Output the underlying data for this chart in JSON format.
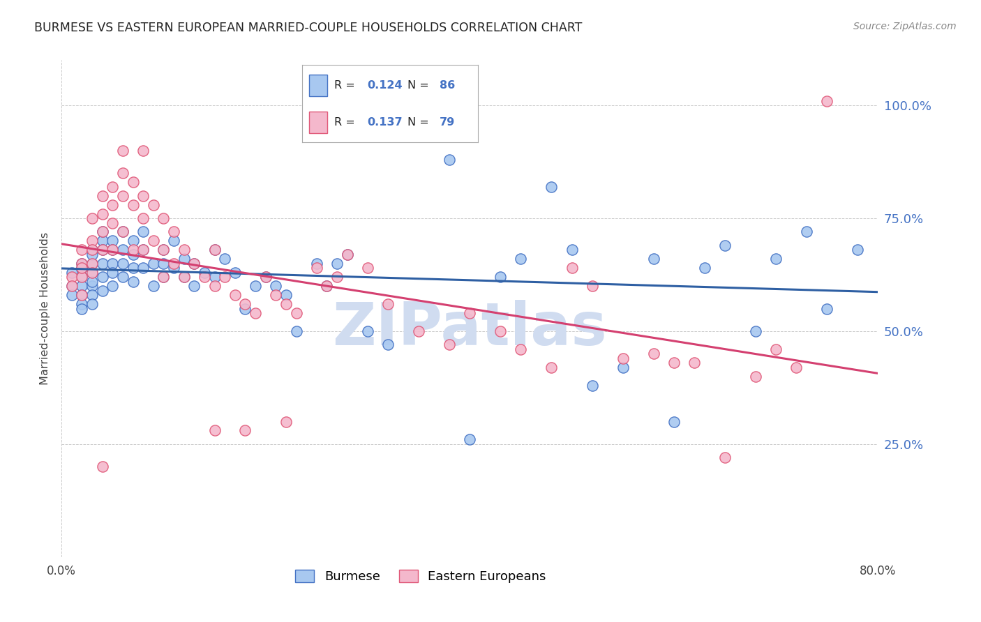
{
  "title": "BURMESE VS EASTERN EUROPEAN MARRIED-COUPLE HOUSEHOLDS CORRELATION CHART",
  "source": "Source: ZipAtlas.com",
  "ylabel": "Married-couple Households",
  "yticks": [
    "25.0%",
    "50.0%",
    "75.0%",
    "100.0%"
  ],
  "ytick_vals": [
    0.25,
    0.5,
    0.75,
    1.0
  ],
  "xlim": [
    0.0,
    0.8
  ],
  "ylim": [
    0.0,
    1.1
  ],
  "legend_burmese_R": "0.124",
  "legend_burmese_N": "86",
  "legend_eastern_R": "0.137",
  "legend_eastern_N": "79",
  "color_burmese_fill": "#A8C8F0",
  "color_eastern_fill": "#F4B8CC",
  "color_burmese_edge": "#4472C4",
  "color_eastern_edge": "#E05878",
  "color_burmese_line": "#2E5FA3",
  "color_eastern_line": "#D44070",
  "color_right_axis": "#4472C4",
  "color_title": "#222222",
  "color_source": "#888888",
  "watermark_text": "ZIPatlas",
  "watermark_color": "#D0DCF0",
  "burmese_x": [
    0.01,
    0.01,
    0.01,
    0.02,
    0.02,
    0.02,
    0.02,
    0.02,
    0.02,
    0.02,
    0.03,
    0.03,
    0.03,
    0.03,
    0.03,
    0.03,
    0.03,
    0.03,
    0.04,
    0.04,
    0.04,
    0.04,
    0.04,
    0.04,
    0.05,
    0.05,
    0.05,
    0.05,
    0.05,
    0.06,
    0.06,
    0.06,
    0.06,
    0.07,
    0.07,
    0.07,
    0.07,
    0.08,
    0.08,
    0.08,
    0.09,
    0.09,
    0.1,
    0.1,
    0.1,
    0.11,
    0.11,
    0.12,
    0.12,
    0.13,
    0.13,
    0.14,
    0.15,
    0.15,
    0.16,
    0.17,
    0.18,
    0.19,
    0.2,
    0.21,
    0.22,
    0.23,
    0.25,
    0.26,
    0.27,
    0.28,
    0.3,
    0.32,
    0.35,
    0.38,
    0.4,
    0.43,
    0.45,
    0.48,
    0.5,
    0.52,
    0.55,
    0.58,
    0.6,
    0.63,
    0.65,
    0.68,
    0.7,
    0.73,
    0.75,
    0.78
  ],
  "burmese_y": [
    0.6,
    0.63,
    0.58,
    0.65,
    0.62,
    0.6,
    0.58,
    0.56,
    0.64,
    0.55,
    0.68,
    0.65,
    0.63,
    0.6,
    0.58,
    0.56,
    0.67,
    0.61,
    0.7,
    0.68,
    0.65,
    0.62,
    0.59,
    0.72,
    0.7,
    0.68,
    0.65,
    0.63,
    0.6,
    0.72,
    0.68,
    0.65,
    0.62,
    0.7,
    0.67,
    0.64,
    0.61,
    0.72,
    0.68,
    0.64,
    0.65,
    0.6,
    0.68,
    0.65,
    0.62,
    0.7,
    0.64,
    0.66,
    0.62,
    0.65,
    0.6,
    0.63,
    0.68,
    0.62,
    0.66,
    0.63,
    0.55,
    0.6,
    0.62,
    0.6,
    0.58,
    0.5,
    0.65,
    0.6,
    0.65,
    0.67,
    0.5,
    0.47,
    0.93,
    0.88,
    0.26,
    0.62,
    0.66,
    0.82,
    0.68,
    0.38,
    0.42,
    0.66,
    0.3,
    0.64,
    0.69,
    0.5,
    0.66,
    0.72,
    0.55,
    0.68
  ],
  "eastern_x": [
    0.01,
    0.01,
    0.02,
    0.02,
    0.02,
    0.02,
    0.02,
    0.03,
    0.03,
    0.03,
    0.03,
    0.03,
    0.04,
    0.04,
    0.04,
    0.04,
    0.05,
    0.05,
    0.05,
    0.05,
    0.06,
    0.06,
    0.06,
    0.07,
    0.07,
    0.07,
    0.08,
    0.08,
    0.08,
    0.09,
    0.09,
    0.1,
    0.1,
    0.11,
    0.11,
    0.12,
    0.12,
    0.13,
    0.14,
    0.15,
    0.15,
    0.16,
    0.17,
    0.18,
    0.19,
    0.2,
    0.21,
    0.22,
    0.23,
    0.25,
    0.26,
    0.27,
    0.28,
    0.3,
    0.32,
    0.35,
    0.38,
    0.4,
    0.43,
    0.45,
    0.48,
    0.5,
    0.52,
    0.55,
    0.58,
    0.6,
    0.62,
    0.65,
    0.68,
    0.7,
    0.72,
    0.75,
    0.22,
    0.18,
    0.15,
    0.1,
    0.08,
    0.06,
    0.04
  ],
  "eastern_y": [
    0.62,
    0.6,
    0.68,
    0.65,
    0.62,
    0.58,
    0.64,
    0.75,
    0.7,
    0.68,
    0.65,
    0.63,
    0.8,
    0.76,
    0.72,
    0.68,
    0.82,
    0.78,
    0.74,
    0.68,
    0.85,
    0.8,
    0.72,
    0.83,
    0.78,
    0.68,
    0.8,
    0.75,
    0.68,
    0.78,
    0.7,
    0.75,
    0.68,
    0.72,
    0.65,
    0.68,
    0.62,
    0.65,
    0.62,
    0.68,
    0.6,
    0.62,
    0.58,
    0.56,
    0.54,
    0.62,
    0.58,
    0.56,
    0.54,
    0.64,
    0.6,
    0.62,
    0.67,
    0.64,
    0.56,
    0.5,
    0.47,
    0.54,
    0.5,
    0.46,
    0.42,
    0.64,
    0.6,
    0.44,
    0.45,
    0.43,
    0.43,
    0.22,
    0.4,
    0.46,
    0.42,
    1.01,
    0.3,
    0.28,
    0.28,
    0.62,
    0.9,
    0.9,
    0.2
  ]
}
